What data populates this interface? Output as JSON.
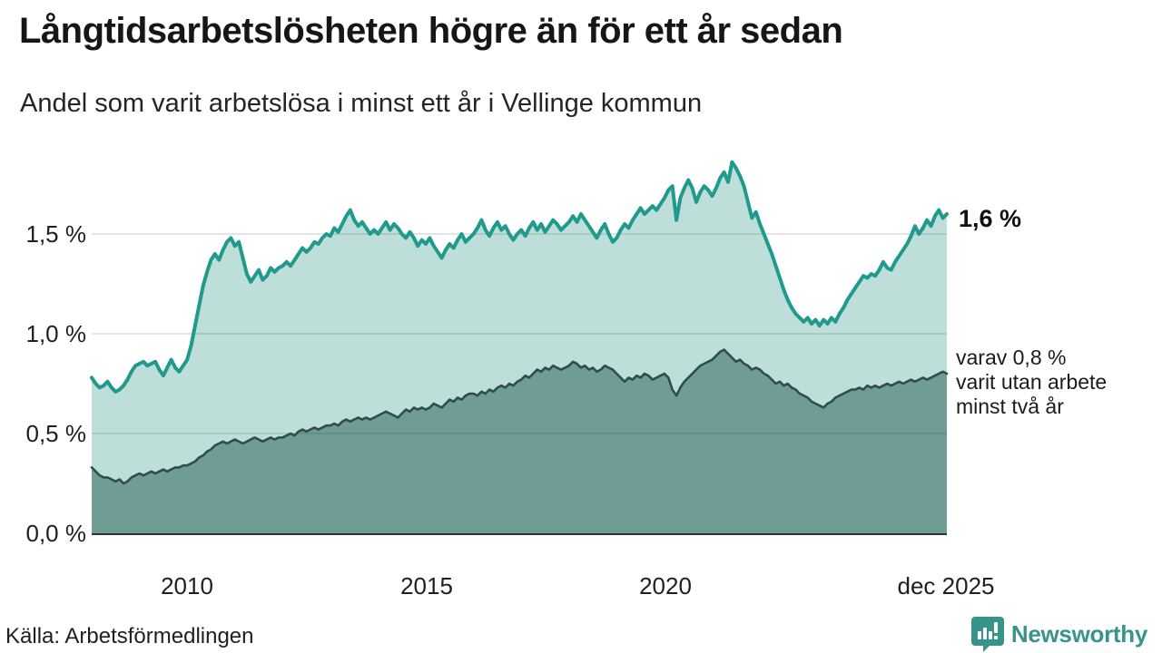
{
  "header": {
    "title": "Långtidsarbetslösheten högre än för ett år sedan",
    "subtitle": "Andel som varit arbetslösa i minst ett år i Vellinge kommun"
  },
  "chart_data": {
    "type": "area",
    "title": "Långtidsarbetslösheten högre än för ett år sedan",
    "subtitle": "Andel som varit arbetslösa i minst ett år i Vellinge kommun",
    "x_unit": "month",
    "x_start": "2008-01",
    "x_end": "2025-12",
    "ylim": [
      0,
      1.9
    ],
    "grid": true,
    "y_grid_values": [
      0.5,
      1.0,
      1.5
    ],
    "y_tick_labels": [
      "0,0 %",
      "0,5 %",
      "1,0 %",
      "1,5 %"
    ],
    "x_tick_labels": [
      "2010",
      "2015",
      "2020",
      "dec 2025"
    ],
    "series": [
      {
        "name": "Andel arbetslösa minst ett år",
        "last_value": 1.6,
        "line_color": "#1f9a8c",
        "fill_color": "#bedfd9",
        "values": [
          0.78,
          0.75,
          0.73,
          0.74,
          0.76,
          0.73,
          0.71,
          0.72,
          0.74,
          0.77,
          0.81,
          0.84,
          0.85,
          0.86,
          0.84,
          0.85,
          0.86,
          0.82,
          0.79,
          0.83,
          0.87,
          0.83,
          0.81,
          0.84,
          0.87,
          0.94,
          1.04,
          1.14,
          1.24,
          1.31,
          1.37,
          1.4,
          1.37,
          1.42,
          1.46,
          1.48,
          1.44,
          1.46,
          1.38,
          1.3,
          1.26,
          1.29,
          1.32,
          1.27,
          1.29,
          1.33,
          1.31,
          1.33,
          1.34,
          1.36,
          1.34,
          1.37,
          1.4,
          1.43,
          1.41,
          1.43,
          1.46,
          1.45,
          1.48,
          1.5,
          1.49,
          1.53,
          1.51,
          1.55,
          1.59,
          1.62,
          1.57,
          1.54,
          1.56,
          1.53,
          1.5,
          1.52,
          1.5,
          1.53,
          1.56,
          1.52,
          1.55,
          1.53,
          1.5,
          1.48,
          1.51,
          1.48,
          1.44,
          1.47,
          1.45,
          1.48,
          1.44,
          1.41,
          1.38,
          1.42,
          1.45,
          1.43,
          1.47,
          1.5,
          1.46,
          1.48,
          1.5,
          1.53,
          1.57,
          1.52,
          1.49,
          1.53,
          1.56,
          1.52,
          1.54,
          1.5,
          1.47,
          1.5,
          1.52,
          1.49,
          1.53,
          1.56,
          1.52,
          1.55,
          1.51,
          1.54,
          1.57,
          1.55,
          1.52,
          1.54,
          1.56,
          1.59,
          1.56,
          1.6,
          1.57,
          1.54,
          1.51,
          1.48,
          1.52,
          1.55,
          1.5,
          1.46,
          1.48,
          1.52,
          1.55,
          1.53,
          1.57,
          1.6,
          1.63,
          1.6,
          1.62,
          1.64,
          1.62,
          1.65,
          1.68,
          1.72,
          1.74,
          1.57,
          1.68,
          1.73,
          1.77,
          1.73,
          1.66,
          1.71,
          1.74,
          1.72,
          1.69,
          1.73,
          1.78,
          1.81,
          1.76,
          1.86,
          1.83,
          1.79,
          1.74,
          1.66,
          1.58,
          1.61,
          1.55,
          1.5,
          1.45,
          1.4,
          1.34,
          1.28,
          1.22,
          1.17,
          1.13,
          1.1,
          1.08,
          1.06,
          1.08,
          1.05,
          1.07,
          1.04,
          1.07,
          1.05,
          1.08,
          1.06,
          1.1,
          1.13,
          1.17,
          1.2,
          1.23,
          1.26,
          1.29,
          1.28,
          1.3,
          1.29,
          1.32,
          1.36,
          1.33,
          1.32,
          1.36,
          1.39,
          1.42,
          1.45,
          1.49,
          1.54,
          1.5,
          1.53,
          1.57,
          1.54,
          1.59,
          1.62,
          1.58,
          1.6
        ]
      },
      {
        "name": "varav utan arbete minst två år",
        "last_value": 0.8,
        "line_color": "#2e4f49",
        "fill_color": "#6f9c95",
        "values": [
          0.33,
          0.31,
          0.29,
          0.28,
          0.28,
          0.27,
          0.26,
          0.27,
          0.25,
          0.26,
          0.28,
          0.29,
          0.3,
          0.29,
          0.3,
          0.31,
          0.3,
          0.31,
          0.32,
          0.31,
          0.32,
          0.33,
          0.33,
          0.34,
          0.34,
          0.35,
          0.36,
          0.38,
          0.39,
          0.41,
          0.42,
          0.44,
          0.45,
          0.46,
          0.45,
          0.46,
          0.47,
          0.46,
          0.45,
          0.46,
          0.47,
          0.48,
          0.47,
          0.46,
          0.47,
          0.48,
          0.47,
          0.48,
          0.48,
          0.49,
          0.5,
          0.49,
          0.51,
          0.52,
          0.51,
          0.52,
          0.53,
          0.52,
          0.53,
          0.54,
          0.54,
          0.55,
          0.54,
          0.56,
          0.57,
          0.56,
          0.57,
          0.58,
          0.57,
          0.58,
          0.57,
          0.58,
          0.59,
          0.6,
          0.61,
          0.6,
          0.59,
          0.58,
          0.6,
          0.62,
          0.61,
          0.63,
          0.62,
          0.63,
          0.62,
          0.63,
          0.65,
          0.64,
          0.63,
          0.65,
          0.67,
          0.66,
          0.68,
          0.67,
          0.69,
          0.7,
          0.7,
          0.69,
          0.71,
          0.7,
          0.72,
          0.71,
          0.73,
          0.74,
          0.73,
          0.75,
          0.74,
          0.76,
          0.77,
          0.79,
          0.78,
          0.8,
          0.82,
          0.81,
          0.83,
          0.82,
          0.84,
          0.83,
          0.82,
          0.83,
          0.84,
          0.86,
          0.85,
          0.83,
          0.84,
          0.82,
          0.83,
          0.81,
          0.82,
          0.84,
          0.83,
          0.82,
          0.8,
          0.78,
          0.76,
          0.78,
          0.77,
          0.79,
          0.78,
          0.8,
          0.79,
          0.77,
          0.78,
          0.79,
          0.8,
          0.78,
          0.72,
          0.69,
          0.73,
          0.76,
          0.78,
          0.8,
          0.82,
          0.84,
          0.85,
          0.86,
          0.87,
          0.89,
          0.91,
          0.92,
          0.9,
          0.88,
          0.86,
          0.87,
          0.85,
          0.84,
          0.82,
          0.83,
          0.82,
          0.8,
          0.79,
          0.77,
          0.75,
          0.76,
          0.74,
          0.75,
          0.73,
          0.72,
          0.7,
          0.69,
          0.68,
          0.66,
          0.65,
          0.64,
          0.63,
          0.65,
          0.66,
          0.68,
          0.69,
          0.7,
          0.71,
          0.72,
          0.72,
          0.73,
          0.72,
          0.74,
          0.73,
          0.74,
          0.73,
          0.74,
          0.75,
          0.74,
          0.75,
          0.76,
          0.75,
          0.76,
          0.77,
          0.76,
          0.77,
          0.78,
          0.77,
          0.78,
          0.79,
          0.8,
          0.81,
          0.8
        ]
      }
    ],
    "legend_position": "none"
  },
  "annotations": {
    "end_value_label": "1,6 %",
    "secondary_line1": "varav 0,8 %",
    "secondary_line2": "varit utan arbete",
    "secondary_line3": "minst två år"
  },
  "axes": {
    "y_labels": [
      "1,5 %",
      "1,0 %",
      "0,5 %",
      "0,0 %"
    ],
    "x_labels": [
      "2010",
      "2015",
      "2020",
      "dec 2025"
    ]
  },
  "footer": {
    "source": "Källa: Arbetsförmedlingen",
    "brand_name": "Newsworthy"
  },
  "colors": {
    "accent_teal": "#1f9a8c",
    "light_fill": "#bedfd9",
    "dark_fill": "#6f9c95",
    "dark_line": "#2e4f49",
    "brand_teal": "#38948b",
    "gridline": "#d0d0d0",
    "baseline": "#2f2f2f"
  }
}
